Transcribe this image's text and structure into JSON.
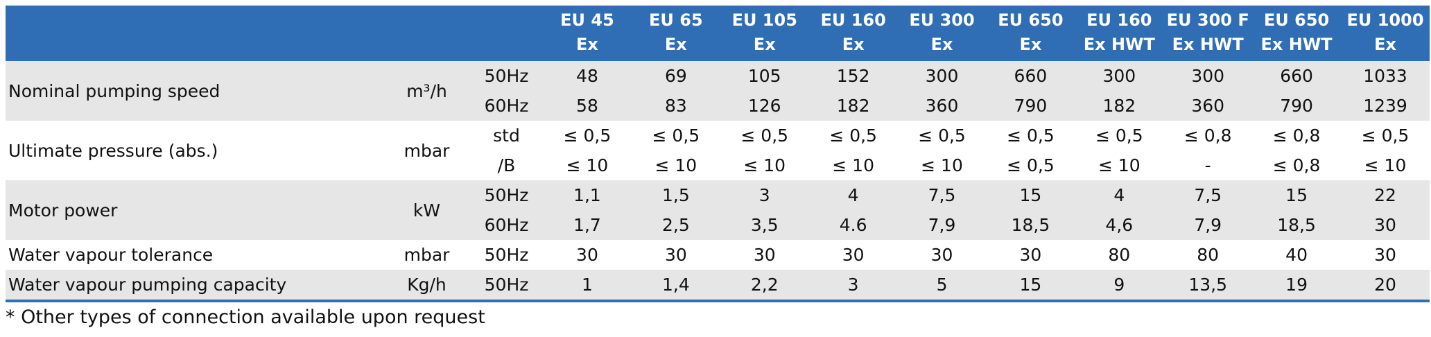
{
  "table": {
    "models": [
      {
        "line1": "EU 45",
        "line2": "Ex"
      },
      {
        "line1": "EU 65",
        "line2": "Ex"
      },
      {
        "line1": "EU 105",
        "line2": "Ex"
      },
      {
        "line1": "EU 160",
        "line2": "Ex"
      },
      {
        "line1": "EU 300",
        "line2": "Ex"
      },
      {
        "line1": "EU 650",
        "line2": "Ex"
      },
      {
        "line1": "EU 160",
        "line2": "Ex HWT"
      },
      {
        "line1": "EU 300 F",
        "line2": "Ex HWT"
      },
      {
        "line1": "EU 650",
        "line2": "Ex HWT"
      },
      {
        "line1": "EU 1000",
        "line2": "Ex"
      }
    ],
    "groups": [
      {
        "parameter": "Nominal pumping speed",
        "unit": "m³/h",
        "rows": [
          {
            "condition": "50Hz",
            "values": [
              "48",
              "69",
              "105",
              "152",
              "300",
              "660",
              "300",
              "300",
              "660",
              "1033"
            ]
          },
          {
            "condition": "60Hz",
            "values": [
              "58",
              "83",
              "126",
              "182",
              "360",
              "790",
              "182",
              "360",
              "790",
              "1239"
            ]
          }
        ]
      },
      {
        "parameter": "Ultimate pressure (abs.)",
        "unit": "mbar",
        "rows": [
          {
            "condition": "std",
            "values": [
              "≤ 0,5",
              "≤ 0,5",
              "≤ 0,5",
              "≤ 0,5",
              "≤ 0,5",
              "≤ 0,5",
              "≤ 0,5",
              "≤ 0,8",
              "≤ 0,8",
              "≤ 0,5"
            ]
          },
          {
            "condition": "/B",
            "values": [
              "≤ 10",
              "≤ 10",
              "≤ 10",
              "≤ 10",
              "≤ 10",
              "≤ 0,5",
              "≤ 10",
              "-",
              "≤ 0,8",
              "≤ 10"
            ]
          }
        ]
      },
      {
        "parameter": "Motor power",
        "unit": "kW",
        "rows": [
          {
            "condition": "50Hz",
            "values": [
              "1,1",
              "1,5",
              "3",
              "4",
              "7,5",
              "15",
              "4",
              "7,5",
              "15",
              "22"
            ]
          },
          {
            "condition": "60Hz",
            "values": [
              "1,7",
              "2,5",
              "3,5",
              "4.6",
              "7,9",
              "18,5",
              "4,6",
              "7,9",
              "18,5",
              "30"
            ]
          }
        ]
      },
      {
        "parameter": "Water vapour tolerance",
        "unit": "mbar",
        "rows": [
          {
            "condition": "50Hz",
            "values": [
              "30",
              "30",
              "30",
              "30",
              "30",
              "30",
              "80",
              "80",
              "40",
              "30"
            ]
          }
        ]
      },
      {
        "parameter": "Water vapour pumping capacity",
        "unit": "Kg/h",
        "rows": [
          {
            "condition": "50Hz",
            "values": [
              "1",
              "1,4",
              "2,2",
              "3",
              "5",
              "15",
              "9",
              "13,5",
              "19",
              "20"
            ]
          }
        ]
      }
    ]
  },
  "footnote": "* Other types of connection available upon request",
  "colors": {
    "header_bg": "#2f6db5",
    "row_gray": "#e6e6e6",
    "row_white": "#ffffff",
    "rule": "#2f6db5"
  }
}
